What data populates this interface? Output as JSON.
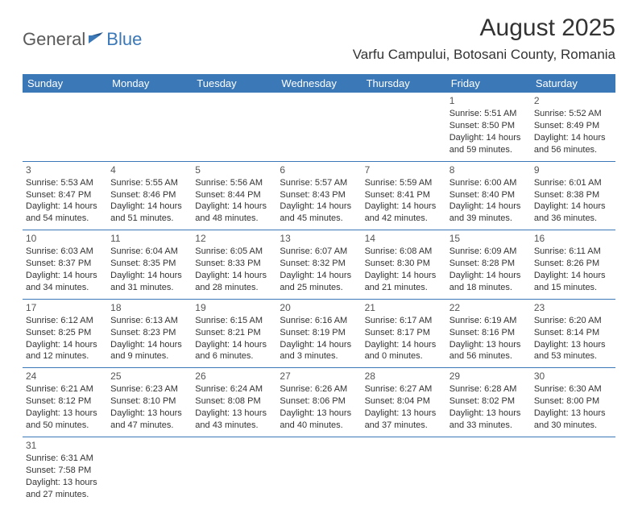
{
  "logo": {
    "text1": "General",
    "text2": "Blue"
  },
  "title": "August 2025",
  "location": "Varfu Campului, Botosani County, Romania",
  "colors": {
    "header_bg": "#3b78b8",
    "header_text": "#ffffff",
    "border": "#3b78b8",
    "logo_gray": "#5a5a5a",
    "logo_blue": "#3b78b8",
    "body_text": "#333333"
  },
  "weekdays": [
    "Sunday",
    "Monday",
    "Tuesday",
    "Wednesday",
    "Thursday",
    "Friday",
    "Saturday"
  ],
  "weeks": [
    [
      null,
      null,
      null,
      null,
      null,
      {
        "n": "1",
        "sr": "Sunrise: 5:51 AM",
        "ss": "Sunset: 8:50 PM",
        "dl": "Daylight: 14 hours and 59 minutes."
      },
      {
        "n": "2",
        "sr": "Sunrise: 5:52 AM",
        "ss": "Sunset: 8:49 PM",
        "dl": "Daylight: 14 hours and 56 minutes."
      }
    ],
    [
      {
        "n": "3",
        "sr": "Sunrise: 5:53 AM",
        "ss": "Sunset: 8:47 PM",
        "dl": "Daylight: 14 hours and 54 minutes."
      },
      {
        "n": "4",
        "sr": "Sunrise: 5:55 AM",
        "ss": "Sunset: 8:46 PM",
        "dl": "Daylight: 14 hours and 51 minutes."
      },
      {
        "n": "5",
        "sr": "Sunrise: 5:56 AM",
        "ss": "Sunset: 8:44 PM",
        "dl": "Daylight: 14 hours and 48 minutes."
      },
      {
        "n": "6",
        "sr": "Sunrise: 5:57 AM",
        "ss": "Sunset: 8:43 PM",
        "dl": "Daylight: 14 hours and 45 minutes."
      },
      {
        "n": "7",
        "sr": "Sunrise: 5:59 AM",
        "ss": "Sunset: 8:41 PM",
        "dl": "Daylight: 14 hours and 42 minutes."
      },
      {
        "n": "8",
        "sr": "Sunrise: 6:00 AM",
        "ss": "Sunset: 8:40 PM",
        "dl": "Daylight: 14 hours and 39 minutes."
      },
      {
        "n": "9",
        "sr": "Sunrise: 6:01 AM",
        "ss": "Sunset: 8:38 PM",
        "dl": "Daylight: 14 hours and 36 minutes."
      }
    ],
    [
      {
        "n": "10",
        "sr": "Sunrise: 6:03 AM",
        "ss": "Sunset: 8:37 PM",
        "dl": "Daylight: 14 hours and 34 minutes."
      },
      {
        "n": "11",
        "sr": "Sunrise: 6:04 AM",
        "ss": "Sunset: 8:35 PM",
        "dl": "Daylight: 14 hours and 31 minutes."
      },
      {
        "n": "12",
        "sr": "Sunrise: 6:05 AM",
        "ss": "Sunset: 8:33 PM",
        "dl": "Daylight: 14 hours and 28 minutes."
      },
      {
        "n": "13",
        "sr": "Sunrise: 6:07 AM",
        "ss": "Sunset: 8:32 PM",
        "dl": "Daylight: 14 hours and 25 minutes."
      },
      {
        "n": "14",
        "sr": "Sunrise: 6:08 AM",
        "ss": "Sunset: 8:30 PM",
        "dl": "Daylight: 14 hours and 21 minutes."
      },
      {
        "n": "15",
        "sr": "Sunrise: 6:09 AM",
        "ss": "Sunset: 8:28 PM",
        "dl": "Daylight: 14 hours and 18 minutes."
      },
      {
        "n": "16",
        "sr": "Sunrise: 6:11 AM",
        "ss": "Sunset: 8:26 PM",
        "dl": "Daylight: 14 hours and 15 minutes."
      }
    ],
    [
      {
        "n": "17",
        "sr": "Sunrise: 6:12 AM",
        "ss": "Sunset: 8:25 PM",
        "dl": "Daylight: 14 hours and 12 minutes."
      },
      {
        "n": "18",
        "sr": "Sunrise: 6:13 AM",
        "ss": "Sunset: 8:23 PM",
        "dl": "Daylight: 14 hours and 9 minutes."
      },
      {
        "n": "19",
        "sr": "Sunrise: 6:15 AM",
        "ss": "Sunset: 8:21 PM",
        "dl": "Daylight: 14 hours and 6 minutes."
      },
      {
        "n": "20",
        "sr": "Sunrise: 6:16 AM",
        "ss": "Sunset: 8:19 PM",
        "dl": "Daylight: 14 hours and 3 minutes."
      },
      {
        "n": "21",
        "sr": "Sunrise: 6:17 AM",
        "ss": "Sunset: 8:17 PM",
        "dl": "Daylight: 14 hours and 0 minutes."
      },
      {
        "n": "22",
        "sr": "Sunrise: 6:19 AM",
        "ss": "Sunset: 8:16 PM",
        "dl": "Daylight: 13 hours and 56 minutes."
      },
      {
        "n": "23",
        "sr": "Sunrise: 6:20 AM",
        "ss": "Sunset: 8:14 PM",
        "dl": "Daylight: 13 hours and 53 minutes."
      }
    ],
    [
      {
        "n": "24",
        "sr": "Sunrise: 6:21 AM",
        "ss": "Sunset: 8:12 PM",
        "dl": "Daylight: 13 hours and 50 minutes."
      },
      {
        "n": "25",
        "sr": "Sunrise: 6:23 AM",
        "ss": "Sunset: 8:10 PM",
        "dl": "Daylight: 13 hours and 47 minutes."
      },
      {
        "n": "26",
        "sr": "Sunrise: 6:24 AM",
        "ss": "Sunset: 8:08 PM",
        "dl": "Daylight: 13 hours and 43 minutes."
      },
      {
        "n": "27",
        "sr": "Sunrise: 6:26 AM",
        "ss": "Sunset: 8:06 PM",
        "dl": "Daylight: 13 hours and 40 minutes."
      },
      {
        "n": "28",
        "sr": "Sunrise: 6:27 AM",
        "ss": "Sunset: 8:04 PM",
        "dl": "Daylight: 13 hours and 37 minutes."
      },
      {
        "n": "29",
        "sr": "Sunrise: 6:28 AM",
        "ss": "Sunset: 8:02 PM",
        "dl": "Daylight: 13 hours and 33 minutes."
      },
      {
        "n": "30",
        "sr": "Sunrise: 6:30 AM",
        "ss": "Sunset: 8:00 PM",
        "dl": "Daylight: 13 hours and 30 minutes."
      }
    ],
    [
      {
        "n": "31",
        "sr": "Sunrise: 6:31 AM",
        "ss": "Sunset: 7:58 PM",
        "dl": "Daylight: 13 hours and 27 minutes."
      },
      null,
      null,
      null,
      null,
      null,
      null
    ]
  ]
}
